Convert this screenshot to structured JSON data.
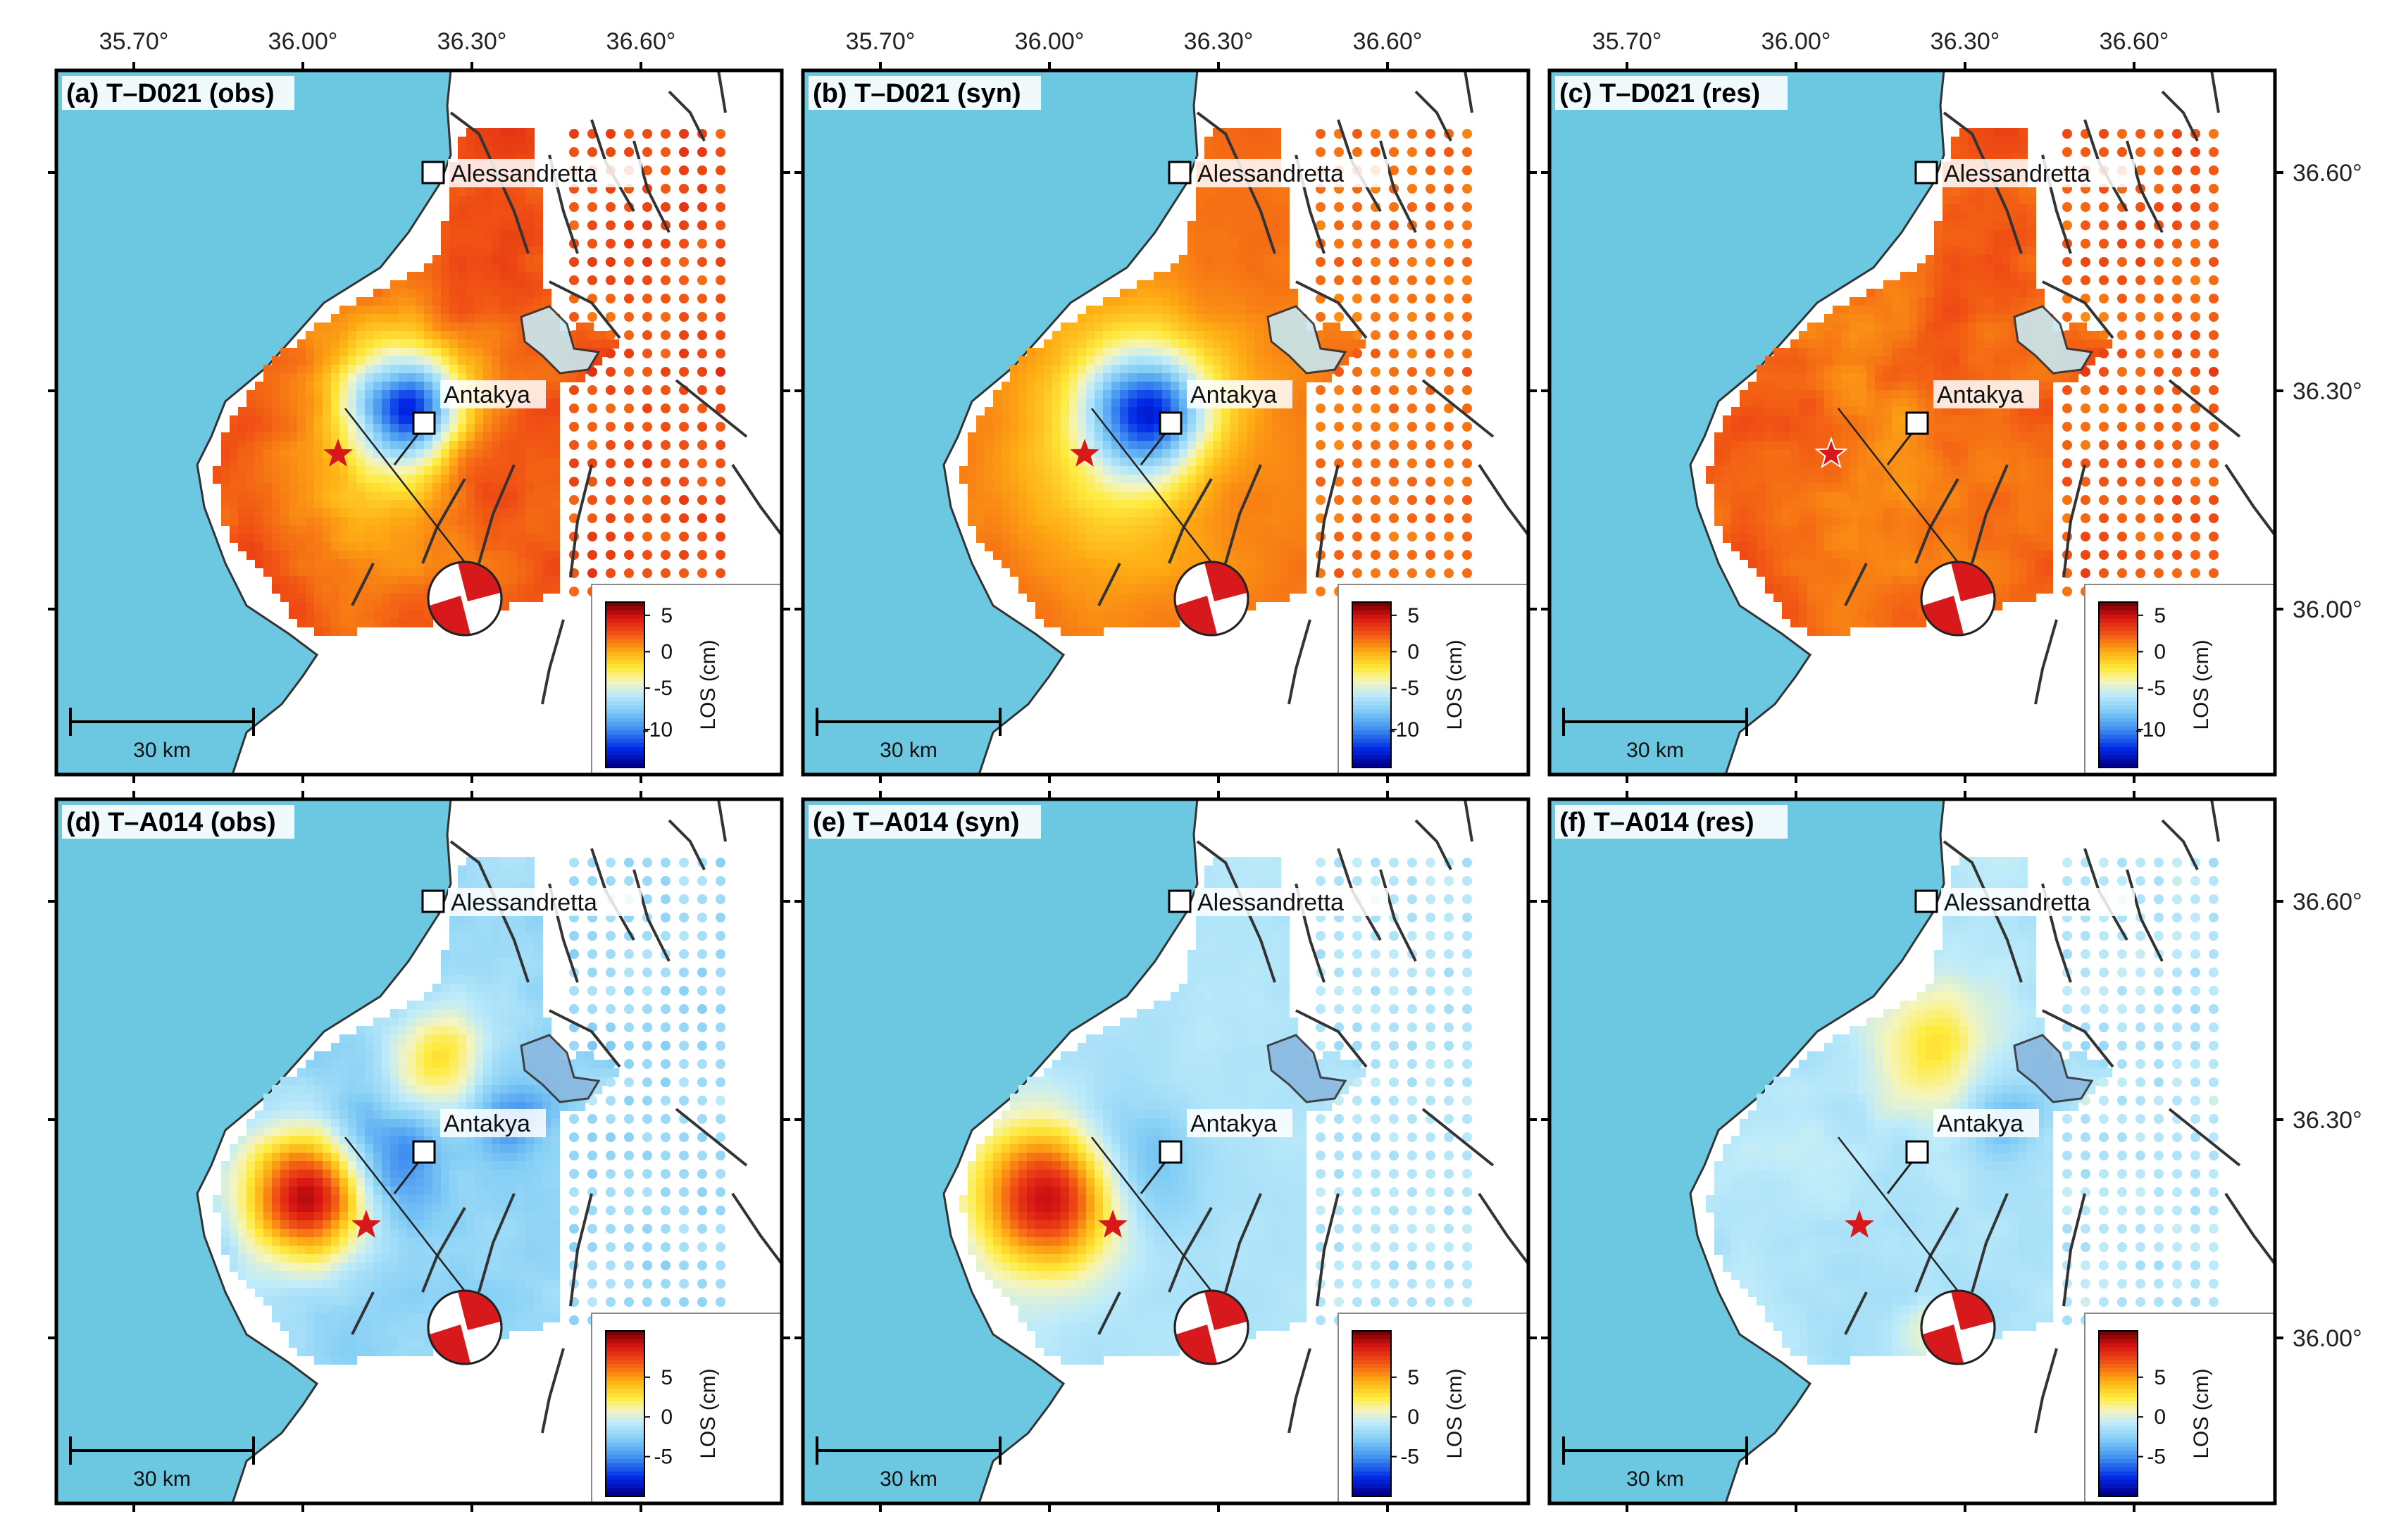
{
  "figure": {
    "longitude_ticks": [
      "35.70°",
      "36.00°",
      "36.30°",
      "36.60°"
    ],
    "latitude_ticks": [
      "36.60°",
      "36.30°",
      "36.00°"
    ],
    "cities": [
      "Alessandretta",
      "Antakya"
    ],
    "scale_bar": "30 km",
    "colors": {
      "sea": "#6cc8e0",
      "land": "#ffffff",
      "fault": "#333333",
      "epicenter_star": "#d7191c"
    },
    "icons": [
      "epicenter-star-icon",
      "focal-mechanism-beachball-icon",
      "city-square-icon"
    ]
  },
  "panels": [
    {
      "title": "(a) T–D021 (obs)",
      "track": "T–D021",
      "type": "obs",
      "colorbar_label": "LOS (cm)",
      "colorbar_ticks": [
        "5",
        "0",
        "-5",
        "-10"
      ]
    },
    {
      "title": "(b) T–D021 (syn)",
      "track": "T–D021",
      "type": "syn",
      "colorbar_label": "LOS (cm)",
      "colorbar_ticks": [
        "5",
        "0",
        "-5",
        "-10"
      ]
    },
    {
      "title": "(c) T–D021 (res)",
      "track": "T–D021",
      "type": "res",
      "colorbar_label": "LOS (cm)",
      "colorbar_ticks": [
        "5",
        "0",
        "-5",
        "-10"
      ]
    },
    {
      "title": "(d) T–A014 (obs)",
      "track": "T–A014",
      "type": "obs",
      "colorbar_label": "LOS (cm)",
      "colorbar_ticks": [
        "5",
        "0",
        "-5"
      ]
    },
    {
      "title": "(e) T–A014 (syn)",
      "track": "T–A014",
      "type": "syn",
      "colorbar_label": "LOS (cm)",
      "colorbar_ticks": [
        "5",
        "0",
        "-5"
      ]
    },
    {
      "title": "(f) T–A014 (res)",
      "track": "T–A014",
      "type": "res",
      "colorbar_label": "LOS (cm)",
      "colorbar_ticks": [
        "5",
        "0",
        "-5"
      ]
    }
  ]
}
